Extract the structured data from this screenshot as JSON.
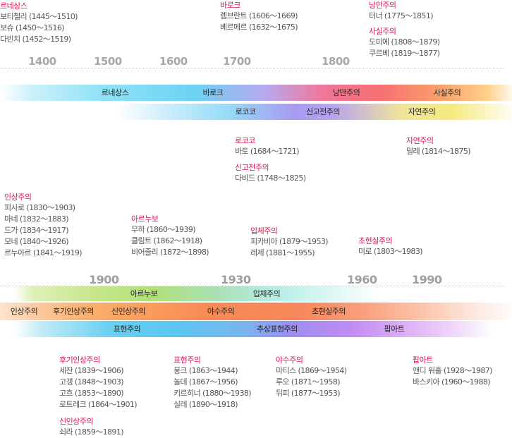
{
  "top_groups": [
    {
      "name": "g-renaissance",
      "title": "르네상스",
      "artists": [
        "보티첼리 (1445～1510)",
        "보슈 (1450～1516)",
        "다빈치 (1452～1519)"
      ]
    },
    {
      "name": "g-baroque",
      "title": "바로크",
      "artists": [
        "렘브란트 (1606～1669)",
        "베르메르 (1632～1675)"
      ]
    },
    {
      "name": "g-romanticism",
      "title": "낭만주의",
      "artists": [
        "터너 (1775～1851)"
      ]
    },
    {
      "name": "g-realism",
      "title": "사실주의",
      "artists": [
        "도미에 (1808～1879)",
        "쿠르베 (1819～1877)"
      ]
    },
    {
      "name": "g-rococo",
      "title": "로코코",
      "artists": [
        "바토 (1684～1721)"
      ]
    },
    {
      "name": "g-neoclassicism",
      "title": "신고전주의",
      "artists": [
        "다비드 (1748～1825)"
      ]
    },
    {
      "name": "g-naturalism",
      "title": "자연주의",
      "artists": [
        "밀레 (1814～1875)"
      ]
    }
  ],
  "top_years": [
    "1400",
    "1500",
    "1600",
    "1700",
    "1800"
  ],
  "top_bands": [
    [
      "르네상스",
      "바로크",
      "낭만주의",
      "사실주의"
    ],
    [
      "로코코",
      "신고전주의",
      "자연주의"
    ]
  ],
  "mid_groups": [
    {
      "name": "g-impressionism",
      "title": "인상주의",
      "artists": [
        "피사로 (1830～1903)",
        "마네 (1832～1883)",
        "드가 (1834～1917)",
        "모네 (1840～1926)",
        "르누아르 (1841～1919)"
      ]
    },
    {
      "name": "g-art-nouveau",
      "title": "아르누보",
      "artists": [
        "무하 (1860～1939)",
        "클림트 (1862～1918)",
        "비어즐리 (1872～1898)"
      ]
    },
    {
      "name": "g-cubism",
      "title": "입체주의",
      "artists": [
        "피카비아 (1879～1953)",
        "레제 (1881～1955)"
      ]
    },
    {
      "name": "g-surrealism",
      "title": "초현실주의",
      "artists": [
        "미로 (1803～1983)"
      ]
    }
  ],
  "bottom_years": [
    "1900",
    "1930",
    "1960",
    "1990"
  ],
  "bottom_bands": [
    [
      "아르누보",
      "입체주의"
    ],
    [
      "인상주의",
      "후기인상주의",
      "신인상주의",
      "야수주의",
      "초현실주의"
    ],
    [
      "표현주의",
      "추상표현주의",
      "팝아트"
    ]
  ],
  "bottom_groups": [
    {
      "name": "g-post-impressionism",
      "title": "후기인상주의",
      "artists": [
        "세잔 (1839～1906)",
        "고갱 (1848～1903)",
        "고흐 (1853～1890)",
        "로트레크 (1864～1901)"
      ]
    },
    {
      "name": "g-neo-impressionism",
      "title": "신인상주의",
      "artists": [
        "쇠라 (1859～1891)"
      ]
    },
    {
      "name": "g-expressionism",
      "title": "표현주의",
      "artists": [
        "뭉크 (1863～1944)",
        "놀데 (1867～1956)",
        "키르히너 (1880～1938)",
        "실레 (1890～1918)"
      ]
    },
    {
      "name": "g-fauvism",
      "title": "야수주의",
      "artists": [
        "마티스 (1869～1954)",
        "루오 (1871～1958)",
        "뒤피 (1877～1953)"
      ]
    },
    {
      "name": "g-pop-art",
      "title": "팝아트",
      "artists": [
        "앤디 워홀 (1928～1987)",
        "바스키아 (1960～1988)"
      ]
    }
  ]
}
